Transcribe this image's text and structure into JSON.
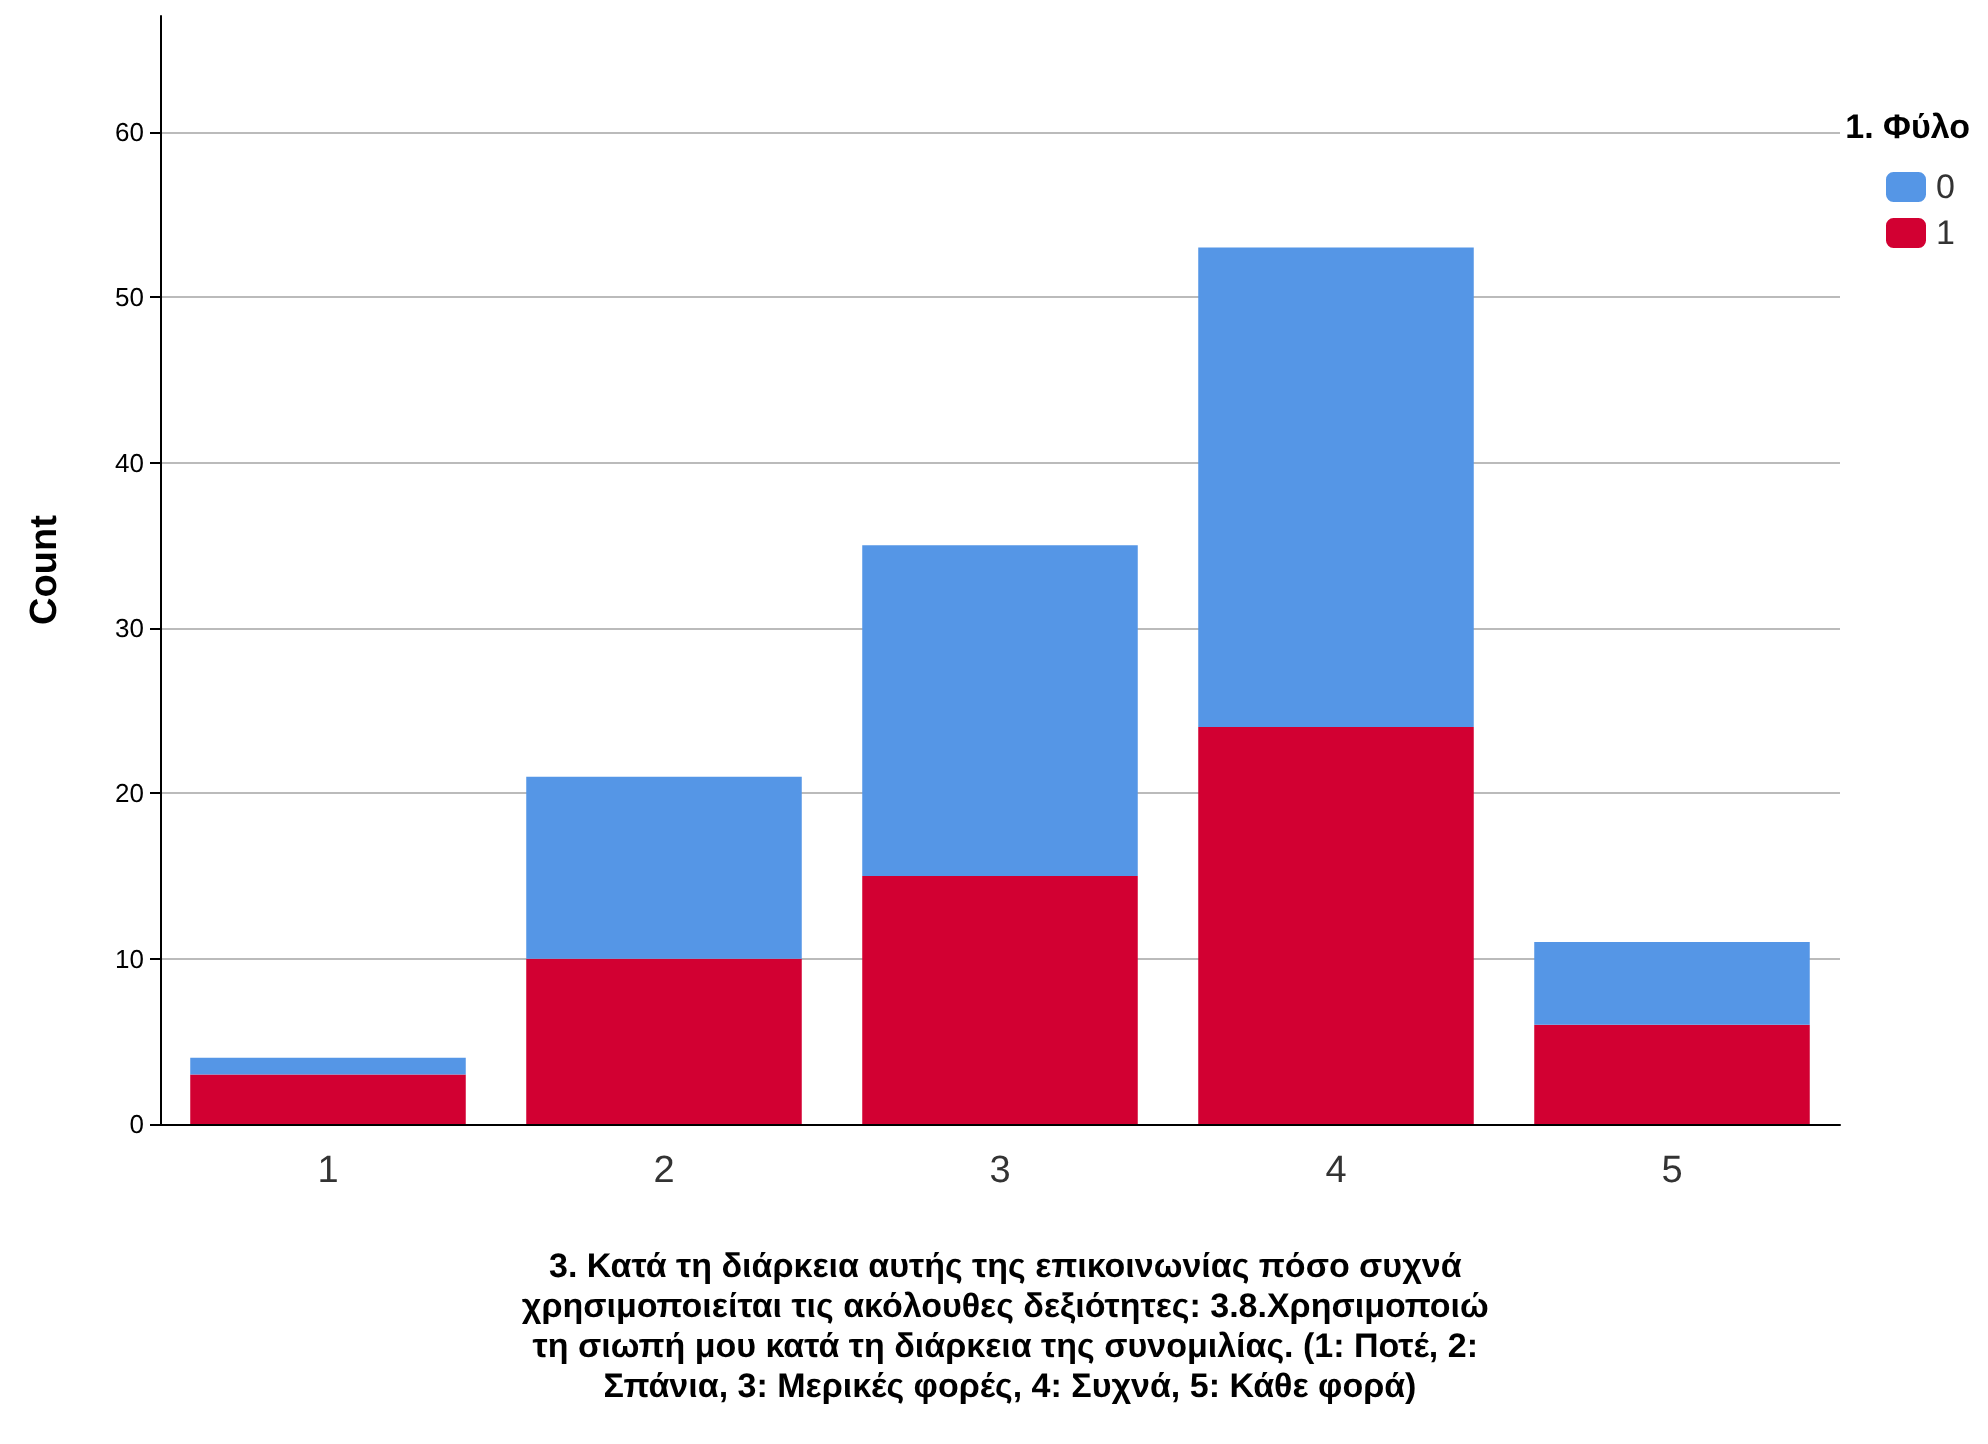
{
  "chart_data": {
    "type": "bar",
    "stacked": true,
    "xlabel": "3. Κατά τη διάρκεια αυτής της επικοινωνίας πόσο συχνά χρησιμοποιείται τις ακόλουθες δεξιότητες: 3.8.Χρησιμοποιώ τη σιωπή μου κατά τη διάρκεια της συνομιλίας. (1: Ποτέ, 2: Σπάνια, 3: Μερικές φορές, 4: Συχνά, 5: Κάθε φορά)",
    "ylabel": "Count",
    "legend_title": "1. Φύλο",
    "categories": [
      "1",
      "2",
      "3",
      "4",
      "5"
    ],
    "series": [
      {
        "name": "1",
        "color": "#d20032",
        "values": [
          3,
          10,
          15,
          24,
          6
        ]
      },
      {
        "name": "0",
        "color": "#5596e6",
        "values": [
          1,
          11,
          20,
          29,
          5
        ]
      }
    ],
    "ylim": [
      0,
      67
    ],
    "yticks": [
      0,
      10,
      20,
      30,
      40,
      50,
      60
    ],
    "grid": "y",
    "legend": "top right"
  }
}
